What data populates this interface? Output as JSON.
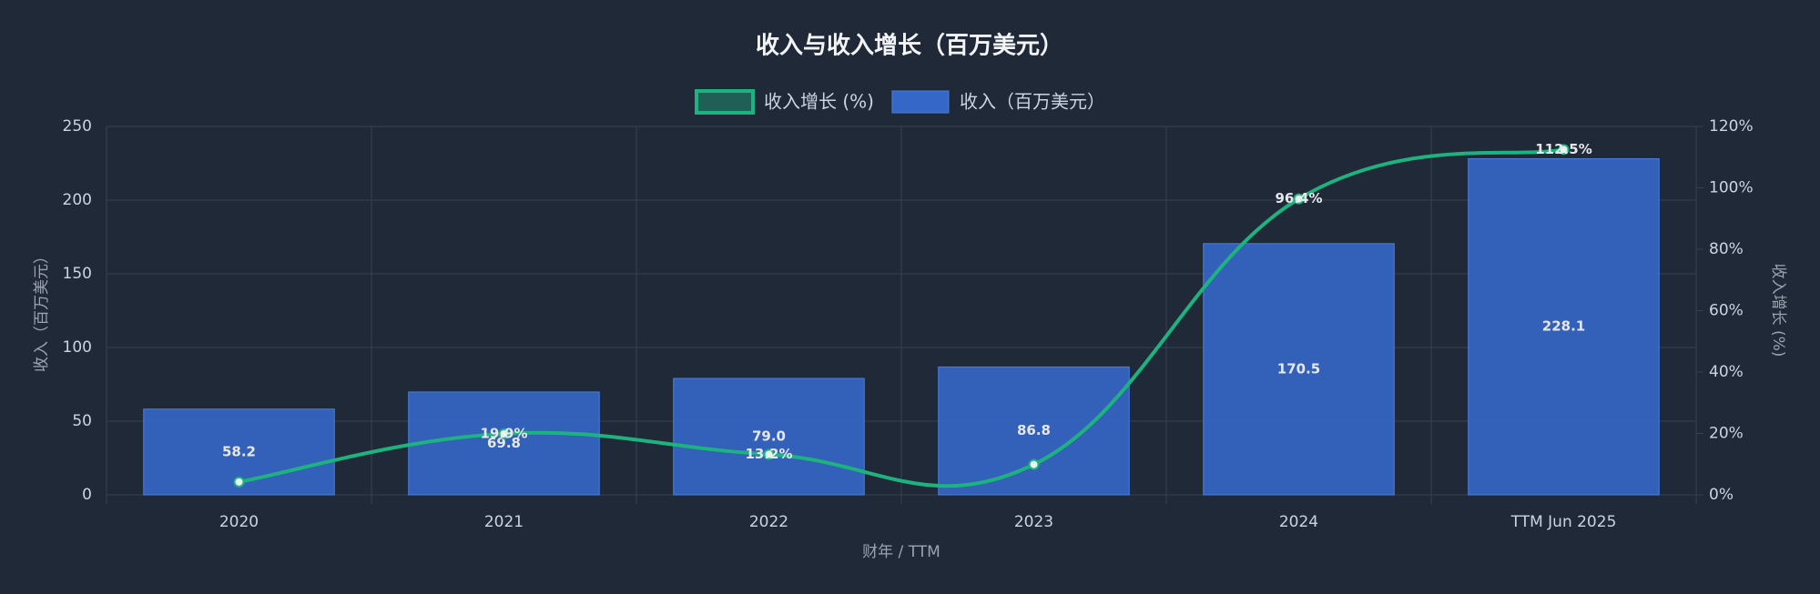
{
  "chart_data": {
    "type": "bar",
    "title": "收入与收入增长（百万美元）",
    "x_label": "财年 / TTM",
    "y_label": "收入（百万美元）",
    "y2_label": "收入增长 (%)",
    "categories": [
      "2020",
      "2021",
      "2022",
      "2023",
      "2024",
      "TTM Jun 2025"
    ],
    "series": [
      {
        "name": "收入增长 (%)",
        "type": "line",
        "axis": "y2",
        "color": "#1db37e",
        "values": [
          4.2,
          19.9,
          13.2,
          9.9,
          96.4,
          112.5
        ],
        "value_labels": [
          null,
          "19.9%",
          "13.2%",
          null,
          "96.4%",
          "112.5%"
        ]
      },
      {
        "name": "收入（百万美元）",
        "type": "bar",
        "color": "#3567c8",
        "values": [
          58.2,
          69.8,
          79.0,
          86.8,
          170.5,
          228.1
        ],
        "value_labels": [
          "58.2",
          "69.8",
          "79.0",
          "86.8",
          "170.5",
          "228.1"
        ]
      }
    ],
    "ylim": [
      0,
      250
    ],
    "yticks": [
      0,
      50,
      100,
      150,
      200,
      250
    ],
    "y2lim": [
      0,
      120
    ],
    "y2ticks": [
      {
        "value": 0,
        "label": "0%"
      },
      {
        "value": 20,
        "label": "20%"
      },
      {
        "value": 40,
        "label": "40%"
      },
      {
        "value": 60,
        "label": "60%"
      },
      {
        "value": 80,
        "label": "80%"
      },
      {
        "value": 100,
        "label": "100%"
      },
      {
        "value": 120,
        "label": "120%"
      }
    ],
    "grid": true,
    "legend": "top"
  }
}
